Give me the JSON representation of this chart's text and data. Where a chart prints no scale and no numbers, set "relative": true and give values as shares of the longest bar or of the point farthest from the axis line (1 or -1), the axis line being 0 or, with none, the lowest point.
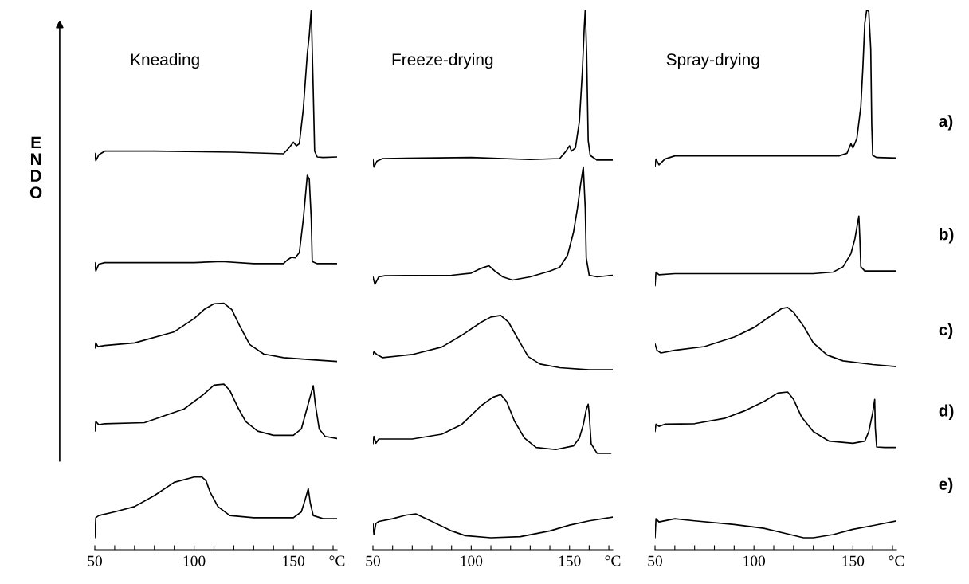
{
  "chart_data": [
    {
      "type": "line",
      "title": "Kneading",
      "ylabel": "ENDO",
      "xlabel": "°C",
      "relative": true,
      "tick_labels": "x",
      "xlim": [
        50,
        172
      ],
      "xticks": [
        50,
        {
          "value": 60,
          "label": null
        },
        {
          "value": 70,
          "label": null
        },
        {
          "value": 80,
          "label": null
        },
        {
          "value": 90,
          "label": null
        },
        100,
        {
          "value": 110,
          "label": null
        },
        {
          "value": 120,
          "label": null
        },
        {
          "value": 130,
          "label": null
        },
        {
          "value": 140,
          "label": null
        },
        150,
        {
          "value": 160,
          "label": null
        },
        {
          "value": 170,
          "label": null
        }
      ],
      "series": [
        {
          "color": "#000000",
          "x": [
            50,
            50.5,
            52,
            55,
            80,
            120,
            145,
            148,
            150,
            151.5,
            153,
            155,
            157,
            158,
            159,
            160,
            160.7,
            162,
            165,
            172
          ],
          "values": [
            0.728,
            0.714,
            0.725,
            0.732,
            0.732,
            0.73,
            0.727,
            0.739,
            0.749,
            0.742,
            0.746,
            0.812,
            0.916,
            0.951,
            1.0,
            0.847,
            0.732,
            0.721,
            0.72,
            0.721
          ]
        },
        {
          "color": "#000000",
          "x": [
            50,
            50.5,
            52,
            55,
            100,
            114,
            130,
            145,
            147,
            149,
            151,
            153,
            155,
            157,
            158,
            159,
            159.5,
            162,
            172
          ],
          "values": [
            0.521,
            0.505,
            0.518,
            0.521,
            0.521,
            0.523,
            0.519,
            0.519,
            0.526,
            0.531,
            0.53,
            0.54,
            0.603,
            0.686,
            0.679,
            0.603,
            0.523,
            0.519,
            0.519
          ]
        },
        {
          "color": "#000000",
          "x": [
            50,
            50.5,
            51.5,
            55,
            70,
            90,
            100,
            105,
            110,
            115,
            119,
            123,
            128,
            135,
            145,
            160,
            172
          ],
          "values": [
            0.359,
            0.369,
            0.362,
            0.364,
            0.369,
            0.39,
            0.415,
            0.432,
            0.443,
            0.444,
            0.432,
            0.401,
            0.366,
            0.348,
            0.341,
            0.337,
            0.334
          ]
        },
        {
          "color": "#000000",
          "x": [
            50,
            50.5,
            52,
            55,
            75,
            95,
            105,
            110,
            115,
            118,
            122,
            126,
            132,
            140,
            150,
            154,
            157,
            160,
            161,
            163,
            166,
            172
          ],
          "values": [
            0.202,
            0.22,
            0.214,
            0.216,
            0.218,
            0.244,
            0.272,
            0.289,
            0.291,
            0.279,
            0.247,
            0.22,
            0.202,
            0.194,
            0.194,
            0.206,
            0.247,
            0.288,
            0.254,
            0.206,
            0.192,
            0.188
          ]
        },
        {
          "color": "#000000",
          "x": [
            50,
            50.5,
            52,
            60,
            70,
            80,
            90,
            100,
            104,
            106,
            108,
            112,
            118,
            130,
            150,
            154,
            156,
            157.5,
            158.5,
            160,
            165,
            172
          ],
          "values": [
            0.0,
            0.038,
            0.042,
            0.049,
            0.059,
            0.08,
            0.105,
            0.115,
            0.115,
            0.108,
            0.087,
            0.059,
            0.042,
            0.038,
            0.038,
            0.049,
            0.073,
            0.093,
            0.066,
            0.042,
            0.036,
            0.036
          ]
        }
      ]
    },
    {
      "type": "line",
      "title": "Freeze-drying",
      "xlabel": "°C",
      "relative": true,
      "tick_labels": "x",
      "xlim": [
        50,
        172
      ],
      "xticks": [
        50,
        {
          "value": 60,
          "label": null
        },
        {
          "value": 70,
          "label": null
        },
        {
          "value": 80,
          "label": null
        },
        {
          "value": 90,
          "label": null
        },
        100,
        {
          "value": 110,
          "label": null
        },
        {
          "value": 120,
          "label": null
        },
        {
          "value": 130,
          "label": null
        },
        {
          "value": 140,
          "label": null
        },
        150,
        {
          "value": 160,
          "label": null
        },
        {
          "value": 170,
          "label": null
        }
      ],
      "series": [
        {
          "color": "#000000",
          "x": [
            50,
            50.5,
            52,
            55,
            100,
            130,
            145,
            148,
            150,
            151,
            153,
            155,
            156.5,
            157.5,
            158,
            158.7,
            159.5,
            160.5,
            164,
            172
          ],
          "values": [
            0.716,
            0.702,
            0.713,
            0.718,
            0.72,
            0.716,
            0.718,
            0.731,
            0.742,
            0.732,
            0.738,
            0.788,
            0.882,
            0.968,
            1.0,
            0.917,
            0.752,
            0.724,
            0.715,
            0.715
          ]
        },
        {
          "color": "#000000",
          "x": [
            50,
            51,
            53,
            56,
            90,
            100,
            105,
            109,
            112,
            116,
            121,
            130,
            140,
            145,
            149,
            152,
            154,
            155.5,
            157,
            158,
            158.5,
            160,
            164,
            172
          ],
          "values": [
            0.494,
            0.48,
            0.494,
            0.496,
            0.497,
            0.501,
            0.51,
            0.515,
            0.505,
            0.494,
            0.488,
            0.494,
            0.505,
            0.512,
            0.535,
            0.578,
            0.623,
            0.666,
            0.702,
            0.623,
            0.53,
            0.497,
            0.494,
            0.497
          ]
        },
        {
          "color": "#000000",
          "x": [
            50,
            50.5,
            52,
            55,
            70,
            85,
            95,
            105,
            110,
            115,
            119,
            124,
            129,
            135,
            145,
            160,
            172
          ],
          "values": [
            0.347,
            0.352,
            0.347,
            0.341,
            0.347,
            0.361,
            0.383,
            0.408,
            0.418,
            0.421,
            0.408,
            0.375,
            0.343,
            0.329,
            0.322,
            0.318,
            0.318
          ]
        },
        {
          "color": "#000000",
          "x": [
            50,
            50.5,
            51.5,
            53,
            70,
            85,
            95,
            105,
            111,
            115,
            118,
            122,
            127,
            133,
            143,
            152,
            155,
            157,
            158.5,
            159.5,
            160,
            161,
            164,
            171
          ],
          "values": [
            0.178,
            0.192,
            0.179,
            0.187,
            0.187,
            0.196,
            0.214,
            0.25,
            0.266,
            0.271,
            0.258,
            0.221,
            0.189,
            0.171,
            0.167,
            0.174,
            0.189,
            0.214,
            0.243,
            0.253,
            0.235,
            0.178,
            0.16,
            0.16
          ]
        },
        {
          "color": "#000000",
          "x": [
            50,
            50.5,
            51.5,
            53,
            60,
            67,
            72,
            80,
            90,
            97,
            110,
            125,
            140,
            150,
            160,
            172
          ],
          "values": [
            0.027,
            0.006,
            0.027,
            0.031,
            0.036,
            0.043,
            0.045,
            0.031,
            0.013,
            0.004,
            0.0,
            0.002,
            0.013,
            0.024,
            0.032,
            0.039
          ]
        }
      ]
    },
    {
      "type": "line",
      "title": "Spray-drying",
      "xlabel": "°C",
      "relative": true,
      "tick_labels": "x",
      "xlim": [
        50,
        172
      ],
      "xticks": [
        50,
        {
          "value": 60,
          "label": null
        },
        {
          "value": 70,
          "label": null
        },
        {
          "value": 80,
          "label": null
        },
        {
          "value": 90,
          "label": null
        },
        100,
        {
          "value": 110,
          "label": null
        },
        {
          "value": 120,
          "label": null
        },
        {
          "value": 130,
          "label": null
        },
        {
          "value": 140,
          "label": null
        },
        150,
        {
          "value": 160,
          "label": null
        },
        {
          "value": 170,
          "label": null
        }
      ],
      "series": [
        {
          "name": "a)",
          "color": "#000000",
          "x": [
            50,
            50.5,
            52,
            55,
            60,
            100,
            143,
            147,
            149,
            150,
            152,
            154,
            155,
            156,
            157,
            158,
            159,
            159.5,
            160,
            162,
            172
          ],
          "values": [
            0.703,
            0.717,
            0.706,
            0.717,
            0.723,
            0.723,
            0.723,
            0.728,
            0.746,
            0.738,
            0.756,
            0.817,
            0.889,
            0.975,
            1.0,
            0.996,
            0.925,
            0.781,
            0.724,
            0.72,
            0.719
          ]
        },
        {
          "name": "b)",
          "color": "#000000",
          "x": [
            50,
            50.5,
            52,
            60,
            130,
            140,
            145,
            149,
            151,
            153,
            153.5,
            154,
            156,
            172
          ],
          "values": [
            0.477,
            0.503,
            0.498,
            0.5,
            0.5,
            0.503,
            0.513,
            0.538,
            0.566,
            0.609,
            0.566,
            0.513,
            0.505,
            0.505
          ]
        },
        {
          "name": "c)",
          "color": "#000000",
          "x": [
            50,
            51,
            53,
            60,
            75,
            90,
            100,
            108,
            114,
            117,
            120,
            125,
            130,
            137,
            145,
            160,
            172
          ],
          "values": [
            0.367,
            0.355,
            0.35,
            0.355,
            0.362,
            0.38,
            0.398,
            0.419,
            0.434,
            0.436,
            0.427,
            0.401,
            0.369,
            0.346,
            0.335,
            0.328,
            0.324
          ]
        },
        {
          "name": "d)",
          "color": "#000000",
          "x": [
            50,
            50.5,
            52,
            55,
            70,
            85,
            95,
            105,
            112,
            117,
            120,
            124,
            130,
            138,
            150,
            156,
            158,
            160,
            161,
            161.3,
            162,
            166,
            172
          ],
          "values": [
            0.201,
            0.215,
            0.211,
            0.215,
            0.216,
            0.226,
            0.24,
            0.258,
            0.274,
            0.276,
            0.262,
            0.229,
            0.201,
            0.183,
            0.179,
            0.183,
            0.201,
            0.237,
            0.262,
            0.208,
            0.172,
            0.171,
            0.171
          ]
        },
        {
          "name": "e)",
          "color": "#000000",
          "x": [
            50,
            50.5,
            52,
            60,
            70,
            90,
            105,
            115,
            125,
            130,
            140,
            150,
            160,
            172
          ],
          "values": [
            0.0,
            0.036,
            0.03,
            0.036,
            0.032,
            0.025,
            0.018,
            0.009,
            0.0,
            0.0,
            0.006,
            0.016,
            0.023,
            0.032
          ]
        }
      ]
    }
  ]
}
